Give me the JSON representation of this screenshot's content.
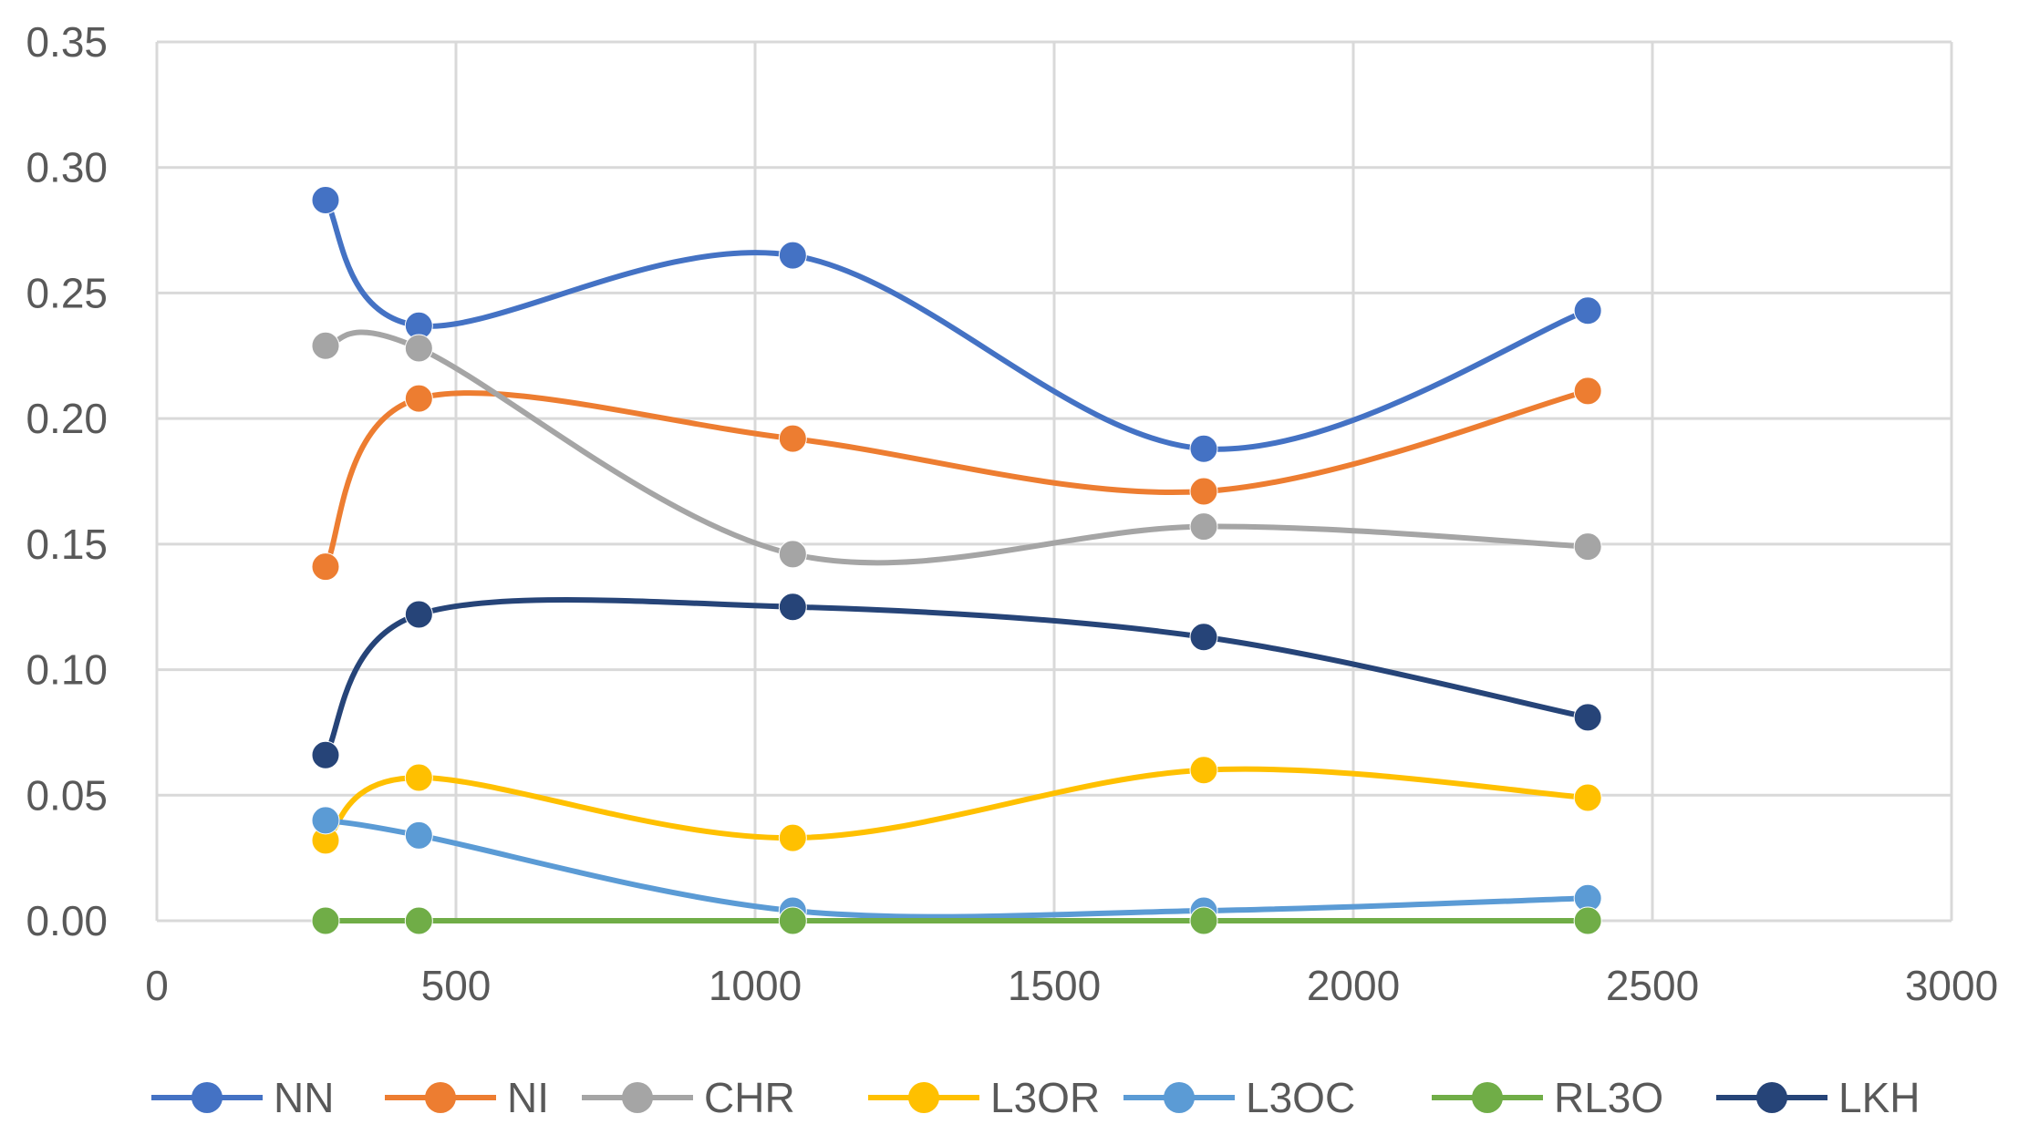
{
  "chart_data": {
    "type": "scatter",
    "title": "",
    "xlabel": "",
    "ylabel": "",
    "xlim": [
      0,
      3000
    ],
    "ylim": [
      0,
      0.35
    ],
    "x_ticks": [
      "0",
      "500",
      "1000",
      "1500",
      "2000",
      "2500",
      "3000"
    ],
    "y_ticks": [
      "0.00",
      "0.05",
      "0.10",
      "0.15",
      "0.20",
      "0.25",
      "0.30",
      "0.35"
    ],
    "grid": true,
    "smooth_lines": true,
    "legend_position": "bottom",
    "x": [
      282,
      438,
      1063,
      1750,
      2392
    ],
    "series": [
      {
        "name": "NN",
        "color": "#4472C4",
        "values": [
          0.287,
          0.237,
          0.265,
          0.188,
          0.243
        ]
      },
      {
        "name": "NI",
        "color": "#ED7D31",
        "values": [
          0.141,
          0.208,
          0.192,
          0.171,
          0.211
        ]
      },
      {
        "name": "CHR",
        "color": "#A5A5A5",
        "values": [
          0.229,
          0.228,
          0.146,
          0.157,
          0.149
        ]
      },
      {
        "name": "L3OR",
        "color": "#FFC000",
        "values": [
          0.032,
          0.057,
          0.033,
          0.06,
          0.049
        ]
      },
      {
        "name": "L3OC",
        "color": "#5B9BD5",
        "values": [
          0.04,
          0.034,
          0.004,
          0.004,
          0.009
        ]
      },
      {
        "name": "RL3O",
        "color": "#70AD47",
        "values": [
          0.0,
          0.0,
          0.0,
          0.0,
          0.0
        ]
      },
      {
        "name": "LKH",
        "color": "#264478",
        "values": [
          0.066,
          0.122,
          0.125,
          0.113,
          0.081
        ]
      }
    ]
  }
}
